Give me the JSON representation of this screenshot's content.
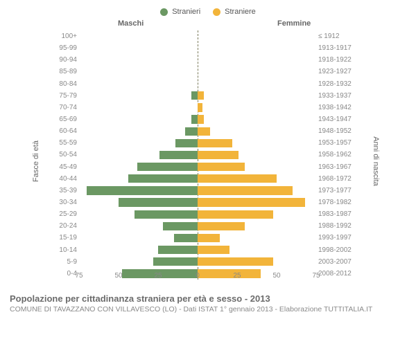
{
  "legend": {
    "items": [
      {
        "label": "Stranieri",
        "color": "#6b9863"
      },
      {
        "label": "Straniere",
        "color": "#f2b43a"
      }
    ]
  },
  "subtitles": {
    "left": "Maschi",
    "right": "Femmine"
  },
  "axis_titles": {
    "left": "Fasce di età",
    "right": "Anni di nascita"
  },
  "pyramid": {
    "type": "population-pyramid",
    "x_max": 75,
    "x_ticks": [
      75,
      50,
      25,
      0,
      25,
      50,
      75
    ],
    "male_color": "#6b9863",
    "female_color": "#f2b43a",
    "bar_height_pct": 72,
    "center_line_color": "#7a7a5a",
    "background_color": "#ffffff",
    "label_color": "#888888",
    "rows": [
      {
        "age": "100+",
        "birth": "≤ 1912",
        "m": 0,
        "f": 0
      },
      {
        "age": "95-99",
        "birth": "1913-1917",
        "m": 0,
        "f": 0
      },
      {
        "age": "90-94",
        "birth": "1918-1922",
        "m": 0,
        "f": 0
      },
      {
        "age": "85-89",
        "birth": "1923-1927",
        "m": 0,
        "f": 0
      },
      {
        "age": "80-84",
        "birth": "1928-1932",
        "m": 0,
        "f": 0
      },
      {
        "age": "75-79",
        "birth": "1933-1937",
        "m": 4,
        "f": 4
      },
      {
        "age": "70-74",
        "birth": "1938-1942",
        "m": 0,
        "f": 3
      },
      {
        "age": "65-69",
        "birth": "1943-1947",
        "m": 4,
        "f": 4
      },
      {
        "age": "60-64",
        "birth": "1948-1952",
        "m": 8,
        "f": 8
      },
      {
        "age": "55-59",
        "birth": "1953-1957",
        "m": 14,
        "f": 22
      },
      {
        "age": "50-54",
        "birth": "1958-1962",
        "m": 24,
        "f": 26
      },
      {
        "age": "45-49",
        "birth": "1963-1967",
        "m": 38,
        "f": 30
      },
      {
        "age": "40-44",
        "birth": "1968-1972",
        "m": 44,
        "f": 50
      },
      {
        "age": "35-39",
        "birth": "1973-1977",
        "m": 70,
        "f": 60
      },
      {
        "age": "30-34",
        "birth": "1978-1982",
        "m": 50,
        "f": 68
      },
      {
        "age": "25-29",
        "birth": "1983-1987",
        "m": 40,
        "f": 48
      },
      {
        "age": "20-24",
        "birth": "1988-1992",
        "m": 22,
        "f": 30
      },
      {
        "age": "15-19",
        "birth": "1993-1997",
        "m": 15,
        "f": 14
      },
      {
        "age": "10-14",
        "birth": "1998-2002",
        "m": 25,
        "f": 20
      },
      {
        "age": "5-9",
        "birth": "2003-2007",
        "m": 28,
        "f": 48
      },
      {
        "age": "0-4",
        "birth": "2008-2012",
        "m": 48,
        "f": 40
      }
    ]
  },
  "footer": {
    "title": "Popolazione per cittadinanza straniera per età e sesso - 2013",
    "subtitle": "COMUNE DI TAVAZZANO CON VILLAVESCO (LO) - Dati ISTAT 1° gennaio 2013 - Elaborazione TUTTITALIA.IT"
  }
}
